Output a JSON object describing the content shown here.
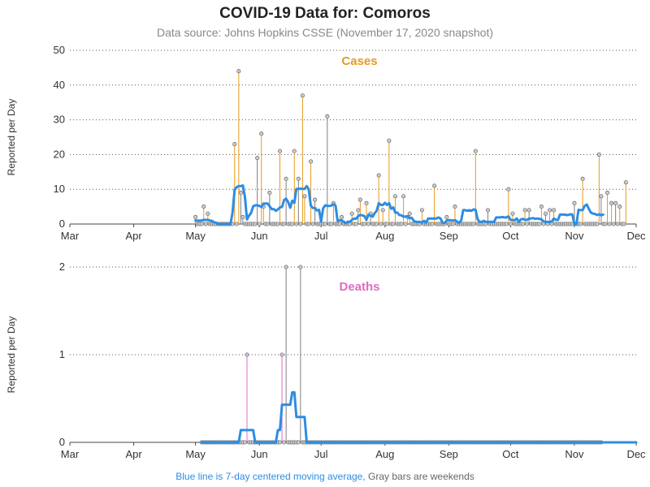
{
  "header": {
    "title": "COVID-19 Data for: Comoros",
    "subtitle": "Data source: Johns Hopkins CSSE (November 17, 2020 snapshot)"
  },
  "footnote": {
    "blue": "Blue line is 7-day centered moving average,",
    "gray": "Gray bars are weekends"
  },
  "colors": {
    "cases": "#e69a1e",
    "deaths": "#e06bc3",
    "average": "#2c8de3",
    "weekend": "#7f7f7f",
    "marker_fill": "#cccccc",
    "axis": "#444444",
    "grid": "#555555"
  },
  "chart_data": [
    {
      "type": "bar",
      "title": "Cases",
      "xlabel": "",
      "ylabel": "Reported per Day",
      "xlim": [
        "2020-03-01",
        "2020-12-01"
      ],
      "ylim": [
        0,
        50
      ],
      "yticks": [
        0,
        10,
        20,
        30,
        40,
        50
      ],
      "xticks": [
        {
          "date": "2020-03-01",
          "label": "Mar"
        },
        {
          "date": "2020-04-01",
          "label": "Apr"
        },
        {
          "date": "2020-05-01",
          "label": "May"
        },
        {
          "date": "2020-06-01",
          "label": "Jun"
        },
        {
          "date": "2020-07-01",
          "label": "Jul"
        },
        {
          "date": "2020-08-01",
          "label": "Aug"
        },
        {
          "date": "2020-09-01",
          "label": "Sep"
        },
        {
          "date": "2020-10-01",
          "label": "Oct"
        },
        {
          "date": "2020-11-01",
          "label": "Nov"
        },
        {
          "date": "2020-12-01",
          "label": "Dec"
        }
      ],
      "grid": "horizontal dotted",
      "start_date": "2020-05-01",
      "daily": [
        2,
        0,
        0,
        0,
        5,
        0,
        3,
        0,
        0,
        0,
        0,
        0,
        0,
        0,
        0,
        0,
        0,
        0,
        0,
        23,
        0,
        44,
        9,
        2,
        0,
        0,
        0,
        0,
        0,
        0,
        19,
        0,
        26,
        5,
        0,
        0,
        9,
        0,
        0,
        0,
        0,
        21,
        0,
        0,
        13,
        0,
        0,
        0,
        21,
        0,
        13,
        0,
        37,
        8,
        0,
        0,
        18,
        0,
        7,
        0,
        0,
        0,
        0,
        0,
        31,
        0,
        0,
        6,
        0,
        0,
        0,
        2,
        0,
        0,
        0,
        0,
        3,
        0,
        0,
        4,
        7,
        0,
        0,
        6,
        0,
        3,
        0,
        0,
        0,
        14,
        0,
        4,
        0,
        0,
        24,
        0,
        0,
        8,
        0,
        0,
        0,
        8,
        0,
        2,
        3,
        0,
        0,
        0,
        0,
        0,
        4,
        0,
        0,
        0,
        0,
        0,
        11,
        0,
        0,
        0,
        0,
        0,
        2,
        0,
        0,
        0,
        5,
        0,
        0,
        0,
        0,
        0,
        0,
        0,
        0,
        0,
        21,
        0,
        0,
        0,
        0,
        0,
        4,
        0,
        0,
        0,
        0,
        0,
        0,
        0,
        0,
        0,
        10,
        0,
        3,
        0,
        0,
        0,
        0,
        0,
        4,
        0,
        4,
        0,
        0,
        0,
        0,
        0,
        5,
        0,
        3,
        0,
        4,
        0,
        4,
        0,
        0,
        0,
        0,
        0,
        0,
        0,
        0,
        0,
        6,
        0,
        0,
        0,
        13,
        0,
        0,
        0,
        0,
        0,
        0,
        0,
        20,
        8,
        0,
        0,
        9,
        0,
        6,
        0,
        6,
        0,
        5,
        0,
        0,
        12
      ],
      "moving_average": [
        1,
        1,
        1,
        1,
        1.2,
        1.2,
        1.2,
        1,
        0.9,
        0.5,
        0.4,
        0,
        0,
        0,
        0,
        0,
        0,
        0,
        3.3,
        9.9,
        10.6,
        10.9,
        10.9,
        11.1,
        7.9,
        1.3,
        2.4,
        3.2,
        5.1,
        5.4,
        5.4,
        5.2,
        4.9,
        5.9,
        5.9,
        5.9,
        5.1,
        4.3,
        4.3,
        3.8,
        4.2,
        4.8,
        4.9,
        6.9,
        7.3,
        6.3,
        4.7,
        6.7,
        6.1,
        10.1,
        10.1,
        10.2,
        10.1,
        10.1,
        10.9,
        10.0,
        5.3,
        4.6,
        4.6,
        3.9,
        4.1,
        0.7,
        4.5,
        5.4,
        5.2,
        5.2,
        5.3,
        5.7,
        5.3,
        0.9,
        1.1,
        1.0,
        0.7,
        0.2,
        0.7,
        0.6,
        1.2,
        1.6,
        1.5,
        2.3,
        2.6,
        2.5,
        2.3,
        1.2,
        2.7,
        2.4,
        2.1,
        3.1,
        3.8,
        6.0,
        5.5,
        5.5,
        6.1,
        5.5,
        6.0,
        4.4,
        4.8,
        3.3,
        3.3,
        2.6,
        2.5,
        2.1,
        2.2,
        2.2,
        1.7,
        1.8,
        0.9,
        0.6,
        0.6,
        0.6,
        0.4,
        0.9,
        0.4,
        1.6,
        1.6,
        1.6,
        1.6,
        1.6,
        1.9,
        1.6,
        0.3,
        0.3,
        1.0,
        1.1,
        1.1,
        1.0,
        1.1,
        0.7,
        0.3,
        1.0,
        4.0,
        4.0,
        3.8,
        4.0,
        3.8,
        4.2,
        4.1,
        1.4,
        0.6,
        0.6,
        0.9,
        0.6,
        0.6,
        0.6,
        0.6,
        0.6,
        1.9,
        1.9,
        1.9,
        2.0,
        1.9,
        1.9,
        2.2,
        1.2,
        1.1,
        1.1,
        1.6,
        0.6,
        1.3,
        1.5,
        1.2,
        1.2,
        1.6,
        1.6,
        1.7,
        1.5,
        1.6,
        1.5,
        1.3,
        0.8,
        0.6,
        0.6,
        0.6,
        0.7,
        1.6,
        1.2,
        1.2,
        2.7,
        2.7,
        2.7,
        2.6,
        2.6,
        2.8,
        2.7,
        0,
        0,
        4.1,
        4.0,
        4.0,
        5.2,
        5.6,
        4.4,
        3.3,
        3.0,
        2.9,
        2.6,
        2.8,
        2.5,
        2.7
      ]
    },
    {
      "type": "bar",
      "title": "Deaths",
      "xlabel": "",
      "ylabel": "Reported per Day",
      "xlim": [
        "2020-03-01",
        "2020-12-01"
      ],
      "ylim": [
        0,
        2
      ],
      "yticks": [
        0,
        1,
        2
      ],
      "xticks": [
        {
          "date": "2020-03-01",
          "label": "Mar"
        },
        {
          "date": "2020-04-01",
          "label": "Apr"
        },
        {
          "date": "2020-05-01",
          "label": "May"
        },
        {
          "date": "2020-06-01",
          "label": "Jun"
        },
        {
          "date": "2020-07-01",
          "label": "Jul"
        },
        {
          "date": "2020-08-01",
          "label": "Aug"
        },
        {
          "date": "2020-09-01",
          "label": "Sep"
        },
        {
          "date": "2020-10-01",
          "label": "Oct"
        },
        {
          "date": "2020-11-01",
          "label": "Nov"
        },
        {
          "date": "2020-12-01",
          "label": "Dec"
        }
      ],
      "grid": "horizontal dotted",
      "start_date": "2020-05-04",
      "daily": [
        0,
        0,
        0,
        0,
        0,
        0,
        0,
        0,
        0,
        0,
        0,
        0,
        0,
        0,
        0,
        0,
        0,
        0,
        0,
        0,
        0,
        0,
        1,
        0,
        0,
        0,
        0,
        0,
        0,
        0,
        0,
        0,
        0,
        0,
        0,
        0,
        0,
        0,
        0,
        1,
        0,
        2,
        0,
        0,
        0,
        0,
        0,
        0,
        2,
        0,
        0,
        0,
        0,
        0,
        0,
        0,
        0,
        0,
        0,
        0,
        0,
        0,
        0,
        0,
        0,
        0,
        0,
        0,
        0,
        0,
        0,
        0,
        0,
        0,
        0,
        0,
        0,
        0,
        0,
        0,
        0,
        0,
        0,
        0,
        0,
        0,
        0,
        0,
        0,
        0,
        0,
        0,
        0,
        0,
        0,
        0,
        0,
        0,
        0,
        0,
        0,
        0,
        0,
        0,
        0,
        0,
        0,
        0,
        0,
        0,
        0,
        0,
        0,
        0,
        0,
        0,
        0,
        0,
        0,
        0,
        0,
        0,
        0,
        0,
        0,
        0,
        0,
        0,
        0,
        0,
        0,
        0,
        0,
        0,
        0,
        0,
        0,
        0,
        0,
        0,
        0,
        0,
        0,
        0,
        0,
        0,
        0,
        0,
        0,
        0,
        0,
        0,
        0,
        0,
        0,
        0,
        0,
        0,
        0,
        0,
        0,
        0,
        0,
        0,
        0,
        0,
        0,
        0,
        0,
        0,
        0,
        0,
        0,
        0,
        0,
        0,
        0,
        0,
        0,
        0,
        0,
        0,
        0,
        0,
        0,
        0,
        0,
        0,
        0,
        0,
        0,
        0,
        0,
        0,
        0
      ],
      "moving_average": [
        0,
        0,
        0,
        0,
        0,
        0,
        0,
        0,
        0,
        0,
        0,
        0,
        0,
        0,
        0,
        0,
        0,
        0,
        0,
        0.14,
        0.14,
        0.14,
        0.14,
        0.14,
        0.14,
        0.14,
        0,
        0,
        0,
        0,
        0,
        0,
        0,
        0,
        0,
        0,
        0,
        0.14,
        0.14,
        0.43,
        0.43,
        0.43,
        0.43,
        0.43,
        0.57,
        0.57,
        0.29,
        0.29,
        0.29,
        0.29,
        0.29,
        0,
        0,
        0,
        0,
        0,
        0,
        0,
        0,
        0,
        0,
        0,
        0,
        0,
        0,
        0,
        0,
        0,
        0,
        0,
        0,
        0,
        0,
        0,
        0,
        0,
        0,
        0,
        0,
        0,
        0,
        0,
        0,
        0,
        0,
        0,
        0,
        0,
        0,
        0,
        0,
        0,
        0,
        0,
        0,
        0,
        0,
        0,
        0,
        0,
        0,
        0,
        0,
        0,
        0,
        0,
        0,
        0,
        0,
        0,
        0,
        0,
        0,
        0,
        0,
        0,
        0,
        0,
        0,
        0,
        0,
        0,
        0,
        0,
        0,
        0,
        0,
        0,
        0,
        0,
        0,
        0,
        0,
        0,
        0,
        0,
        0,
        0,
        0,
        0,
        0,
        0,
        0,
        0,
        0,
        0,
        0,
        0,
        0,
        0,
        0,
        0,
        0,
        0,
        0,
        0,
        0,
        0,
        0,
        0,
        0,
        0,
        0,
        0,
        0,
        0,
        0,
        0,
        0,
        0,
        0,
        0,
        0,
        0,
        0,
        0,
        0,
        0,
        0,
        0,
        0,
        0,
        0,
        0,
        0,
        0,
        0,
        0,
        0,
        0,
        0,
        0,
        0,
        0,
        0,
        0,
        0,
        0,
        0,
        0,
        0,
        0,
        0,
        0,
        0,
        0,
        0,
        0,
        0,
        0,
        0,
        0
      ]
    }
  ]
}
